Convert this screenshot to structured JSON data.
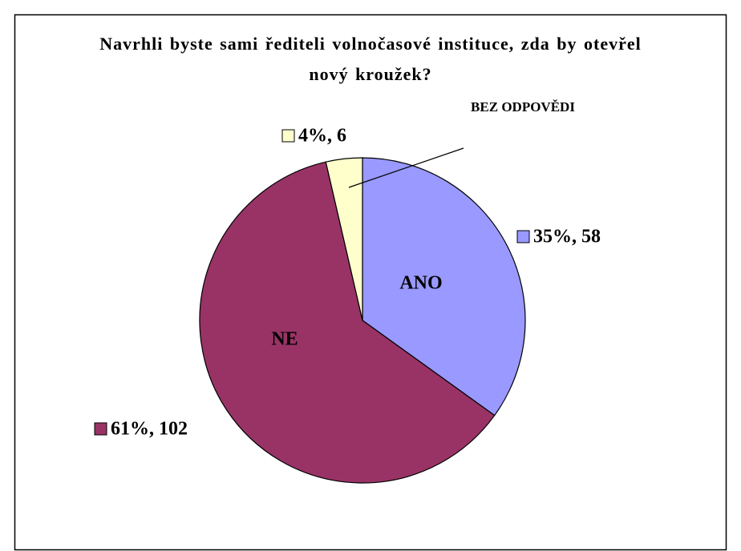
{
  "chart_data": {
    "type": "pie",
    "title": "Navrhli byste sami řediteli volnočasové instituce, zda by otevřel nový kroužek?",
    "categories": [
      "ANO",
      "NE",
      "BEZ ODPOVĚDI"
    ],
    "values": [
      58,
      102,
      6
    ],
    "value_labels": [
      "35%, 58",
      "61%, 102",
      "4%, 6"
    ],
    "colors": [
      "#9999ff",
      "#993366",
      "#ffffcc"
    ]
  }
}
